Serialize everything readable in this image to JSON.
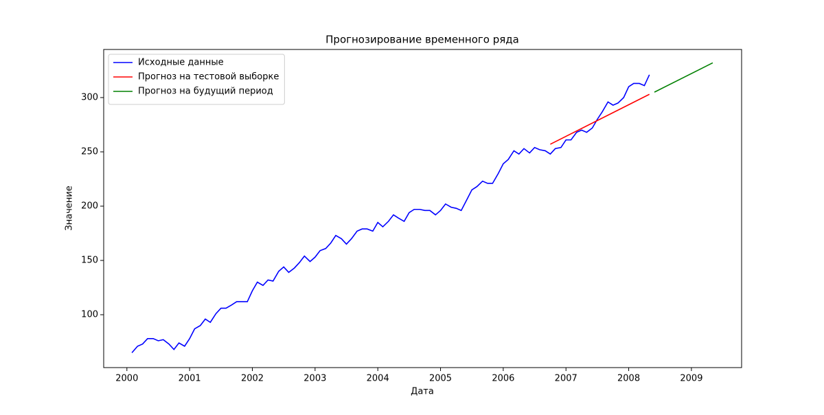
{
  "chart_data": {
    "type": "line",
    "title": "Прогнозирование временного ряда",
    "x_label": "Дата",
    "y_label": "Значение",
    "xlim": [
      1999.63,
      2009.8
    ],
    "ylim": [
      51.3,
      344.3
    ],
    "xticks": [
      2000,
      2001,
      2002,
      2003,
      2004,
      2005,
      2006,
      2007,
      2008,
      2009
    ],
    "yticks": [
      100,
      150,
      200,
      250,
      300
    ],
    "legend": "upper-left",
    "series": [
      {
        "name": "Исходные данные",
        "color": "#0000ff",
        "x": [
          2000.08,
          2000.17,
          2000.25,
          2000.33,
          2000.42,
          2000.5,
          2000.58,
          2000.67,
          2000.75,
          2000.83,
          2000.92,
          2001.0,
          2001.08,
          2001.17,
          2001.25,
          2001.33,
          2001.42,
          2001.5,
          2001.58,
          2001.67,
          2001.75,
          2001.83,
          2001.92,
          2002.0,
          2002.08,
          2002.17,
          2002.25,
          2002.33,
          2002.42,
          2002.5,
          2002.58,
          2002.67,
          2002.75,
          2002.83,
          2002.92,
          2003.0,
          2003.08,
          2003.17,
          2003.25,
          2003.33,
          2003.42,
          2003.5,
          2003.58,
          2003.67,
          2003.75,
          2003.83,
          2003.92,
          2004.0,
          2004.08,
          2004.17,
          2004.25,
          2004.33,
          2004.42,
          2004.5,
          2004.58,
          2004.67,
          2004.75,
          2004.83,
          2004.92,
          2005.0,
          2005.08,
          2005.17,
          2005.25,
          2005.33,
          2005.42,
          2005.5,
          2005.58,
          2005.67,
          2005.75,
          2005.83,
          2005.92,
          2006.0,
          2006.08,
          2006.17,
          2006.25,
          2006.33,
          2006.42,
          2006.5,
          2006.58,
          2006.67,
          2006.75,
          2006.83,
          2006.92,
          2007.0,
          2007.08,
          2007.17,
          2007.25,
          2007.33,
          2007.42,
          2007.5,
          2007.58,
          2007.67,
          2007.75,
          2007.83,
          2007.92,
          2008.0,
          2008.08,
          2008.17,
          2008.25,
          2008.33
        ],
        "values": [
          65,
          71,
          73,
          78,
          78,
          76,
          77,
          73,
          68,
          74,
          71,
          78,
          87,
          90,
          96,
          93,
          101,
          106,
          106,
          109,
          112,
          112,
          112,
          122,
          130,
          127,
          132,
          131,
          140,
          144,
          139,
          143,
          148,
          154,
          149,
          153,
          159,
          161,
          166,
          173,
          170,
          165,
          170,
          177,
          179,
          179,
          177,
          185,
          181,
          186,
          192,
          189,
          186,
          194,
          197,
          197,
          196,
          196,
          192,
          196,
          202,
          199,
          198,
          196,
          206,
          215,
          218,
          223,
          221,
          221,
          230,
          239,
          243,
          251,
          248,
          253,
          249,
          254,
          252,
          251,
          248,
          253,
          254,
          261,
          261,
          268,
          270,
          268,
          272,
          280,
          287,
          296,
          293,
          295,
          300,
          310,
          313,
          313,
          311,
          321
        ]
      },
      {
        "name": "Прогноз на тестовой выборке",
        "color": "#ff0000",
        "x": [
          2006.75,
          2008.33
        ],
        "values": [
          257,
          303
        ]
      },
      {
        "name": "Прогноз на будущий период",
        "color": "#008000",
        "x": [
          2008.41,
          2009.34
        ],
        "values": [
          305,
          332
        ]
      }
    ]
  }
}
